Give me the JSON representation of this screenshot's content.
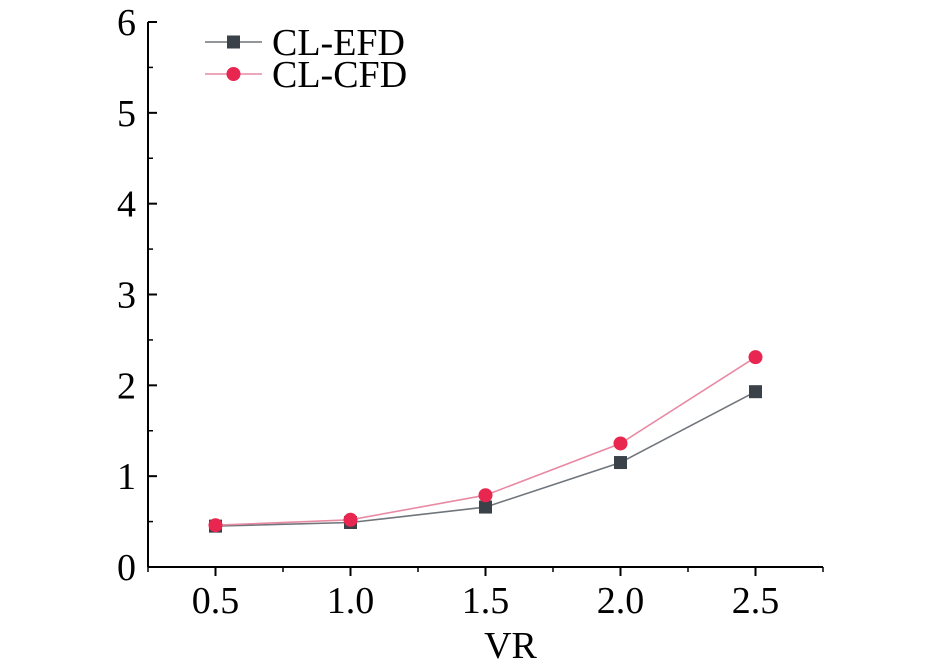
{
  "chart_data": {
    "type": "line",
    "title": "",
    "xlabel": "VR",
    "ylabel": "",
    "x": [
      0.5,
      1.0,
      1.5,
      2.0,
      2.5
    ],
    "xtick_labels": [
      "0.5",
      "1.0",
      "1.5",
      "2.0",
      "2.5"
    ],
    "xlim": [
      0.25,
      2.75
    ],
    "ylim": [
      0,
      6
    ],
    "yticks": [
      0,
      1,
      2,
      3,
      4,
      5,
      6
    ],
    "ytick_labels": [
      "0",
      "1",
      "2",
      "3",
      "4",
      "5",
      "6"
    ],
    "grid": false,
    "legend_position": "top-left",
    "series": [
      {
        "name": "CL-EFD",
        "marker": "square",
        "color": "#3a4149",
        "line_color": "#6f757b",
        "values": [
          0.45,
          0.49,
          0.66,
          1.15,
          1.93
        ]
      },
      {
        "name": "CL-CFD",
        "marker": "circle",
        "color": "#e8264f",
        "line_color": "#e88aa3",
        "values": [
          0.46,
          0.52,
          0.79,
          1.36,
          2.31
        ]
      }
    ]
  }
}
